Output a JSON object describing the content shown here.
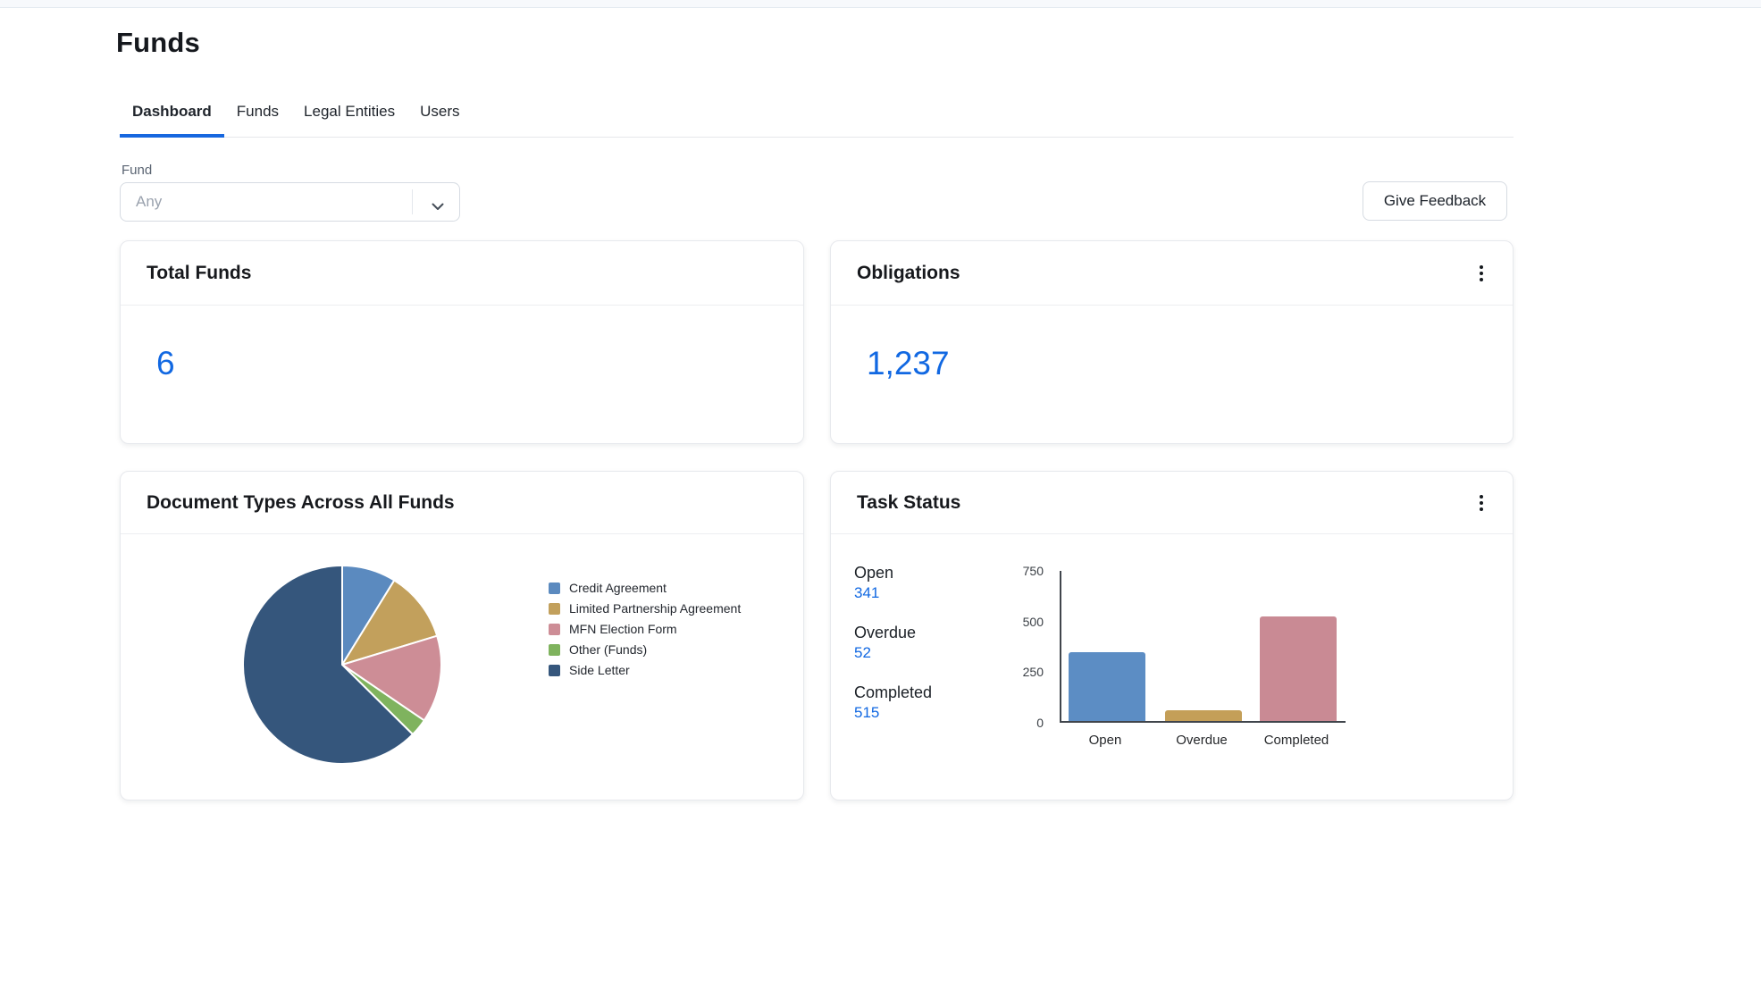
{
  "page": {
    "title": "Funds"
  },
  "tabs": [
    {
      "label": "Dashboard",
      "active": true
    },
    {
      "label": "Funds",
      "active": false
    },
    {
      "label": "Legal Entities",
      "active": false
    },
    {
      "label": "Users",
      "active": false
    }
  ],
  "filter": {
    "label": "Fund",
    "value": "Any"
  },
  "feedback_button": {
    "label": "Give Feedback"
  },
  "icons": {
    "select_chevron": "chevron-down",
    "card_menu": "kebab-vertical-dots"
  },
  "cards": {
    "total_funds": {
      "title": "Total Funds",
      "value": "6"
    },
    "obligations": {
      "title": "Obligations",
      "value": "1,237"
    },
    "document_types": {
      "title": "Document Types Across All Funds"
    },
    "task_status": {
      "title": "Task Status",
      "stats": [
        {
          "label": "Open",
          "value": "341"
        },
        {
          "label": "Overdue",
          "value": "52"
        },
        {
          "label": "Completed",
          "value": "515"
        }
      ]
    }
  },
  "chart_data": [
    {
      "type": "pie",
      "title": "Document Types Across All Funds",
      "labels": [
        "Credit Agreement",
        "Limited Partnership Agreement",
        "MFN Election Form",
        "Other (Funds)",
        "Side Letter"
      ],
      "values": [
        8.8,
        11.5,
        14.2,
        2.9,
        62.6
      ],
      "unit": "percent-of-circle (estimated from slice angles)",
      "colors": [
        "#5B8ABF",
        "#C2A05C",
        "#CD8D96",
        "#7FB35E",
        "#35567C"
      ],
      "legend_position": "right",
      "start_angle_deg": 0,
      "direction": "clockwise-from-top"
    },
    {
      "type": "bar",
      "title": "Task Status",
      "categories": [
        "Open",
        "Overdue",
        "Completed"
      ],
      "values": [
        341,
        52,
        515
      ],
      "colors": [
        "#5C8DC4",
        "#C49F58",
        "#C98A94"
      ],
      "ylim": [
        0,
        750
      ],
      "yticks": [
        0,
        250,
        500,
        750
      ],
      "grid": false,
      "legend_position": "none"
    }
  ],
  "colors": {
    "accent_blue": "#1168E2",
    "tab_underline": "#1767DF",
    "card_border": "#E7E9ED",
    "topbar_bg": "#F7F9FC"
  }
}
